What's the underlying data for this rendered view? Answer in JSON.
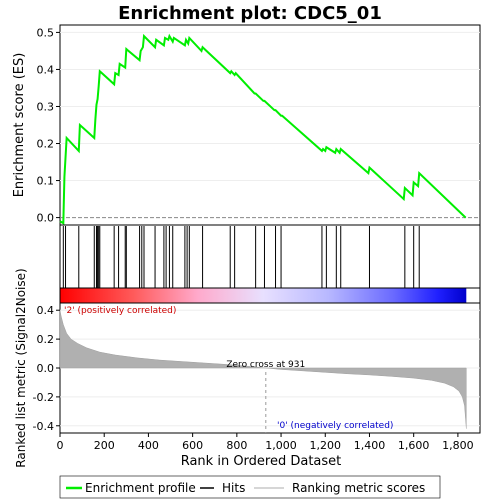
{
  "chart_data": {
    "type": "line",
    "title": "Enrichment plot: CDC5_01",
    "es_panel": {
      "ylabel": "Enrichment score (ES)",
      "ylim": [
        -0.02,
        0.52
      ],
      "yticks": [
        "0.0",
        "0.1",
        "0.2",
        "0.3",
        "0.4",
        "0.5"
      ],
      "ytick_values": [
        0.0,
        0.1,
        0.2,
        0.3,
        0.4,
        0.5
      ],
      "series": [
        {
          "x": [
            0,
            15,
            20,
            30,
            85,
            90,
            155,
            160,
            165,
            170,
            175,
            180,
            245,
            250,
            265,
            270,
            295,
            300,
            360,
            365,
            375,
            380,
            430,
            435,
            470,
            475,
            490,
            495,
            510,
            515,
            565,
            570,
            580,
            585,
            640,
            645,
            770,
            775,
            790,
            795,
            880,
            885,
            920,
            925,
            970,
            975,
            1000,
            1005,
            1185,
            1190,
            1200,
            1205,
            1245,
            1250,
            1265,
            1270,
            1395,
            1400,
            1555,
            1560,
            1595,
            1600,
            1620,
            1625,
            1835
          ],
          "y": [
            -0.01,
            -0.015,
            0.11,
            0.215,
            0.18,
            0.25,
            0.215,
            0.265,
            0.305,
            0.32,
            0.355,
            0.395,
            0.36,
            0.39,
            0.385,
            0.415,
            0.405,
            0.455,
            0.425,
            0.45,
            0.46,
            0.49,
            0.46,
            0.48,
            0.465,
            0.485,
            0.48,
            0.49,
            0.475,
            0.485,
            0.465,
            0.48,
            0.47,
            0.485,
            0.45,
            0.46,
            0.39,
            0.395,
            0.385,
            0.39,
            0.335,
            0.335,
            0.315,
            0.315,
            0.29,
            0.29,
            0.275,
            0.275,
            0.18,
            0.185,
            0.18,
            0.19,
            0.175,
            0.185,
            0.175,
            0.185,
            0.12,
            0.135,
            0.05,
            0.08,
            0.06,
            0.095,
            0.085,
            0.12,
            0.0
          ]
        }
      ]
    },
    "hits": [
      15,
      25,
      85,
      155,
      165,
      170,
      175,
      180,
      245,
      265,
      295,
      300,
      360,
      370,
      380,
      430,
      470,
      480,
      495,
      510,
      565,
      575,
      585,
      645,
      770,
      790,
      885,
      925,
      975,
      1000,
      1185,
      1205,
      1250,
      1270,
      1400,
      1560,
      1600,
      1625
    ],
    "metric_panel": {
      "ylabel": "Ranked list metric (Signal2Noise)",
      "ylim": [
        -0.45,
        0.45
      ],
      "yticks": [
        "0.4",
        "0.2",
        "0.0",
        "-0.2",
        "-0.4"
      ],
      "ytick_values": [
        0.4,
        0.2,
        0.0,
        -0.2,
        -0.4
      ],
      "zero_cross_label": "Zero cross at 931",
      "zero_cross": 931,
      "pos_label": "'2' (positively correlated)",
      "neg_label": "'0' (negatively correlated)",
      "curve_x": [
        0,
        5,
        15,
        30,
        50,
        80,
        120,
        180,
        250,
        350,
        450,
        550,
        650,
        750,
        850,
        931,
        1000,
        1100,
        1200,
        1300,
        1400,
        1500,
        1600,
        1680,
        1740,
        1780,
        1805,
        1820,
        1830,
        1838
      ],
      "curve_y": [
        0.4,
        0.36,
        0.3,
        0.24,
        0.2,
        0.17,
        0.14,
        0.11,
        0.09,
        0.07,
        0.055,
        0.045,
        0.035,
        0.025,
        0.012,
        0.0,
        -0.01,
        -0.02,
        -0.03,
        -0.04,
        -0.048,
        -0.058,
        -0.07,
        -0.085,
        -0.105,
        -0.13,
        -0.16,
        -0.2,
        -0.26,
        -0.42
      ]
    },
    "xlabel": "Rank in Ordered Dataset",
    "xlim": [
      0,
      1900
    ],
    "xticks": [
      "0",
      "200",
      "400",
      "600",
      "800",
      "1,000",
      "1,200",
      "1,400",
      "1,600",
      "1,800"
    ],
    "xtick_values": [
      0,
      200,
      400,
      600,
      800,
      1000,
      1200,
      1400,
      1600,
      1800
    ],
    "n_genes": 1838,
    "legend": {
      "items": [
        "Enrichment profile",
        "Hits",
        "Ranking metric scores"
      ]
    },
    "colors": {
      "profile": "#00ee00",
      "hits": "#000000",
      "metric_fill": "#b0b0b0",
      "pos": "#ff0000",
      "neg": "#0000ff"
    }
  }
}
